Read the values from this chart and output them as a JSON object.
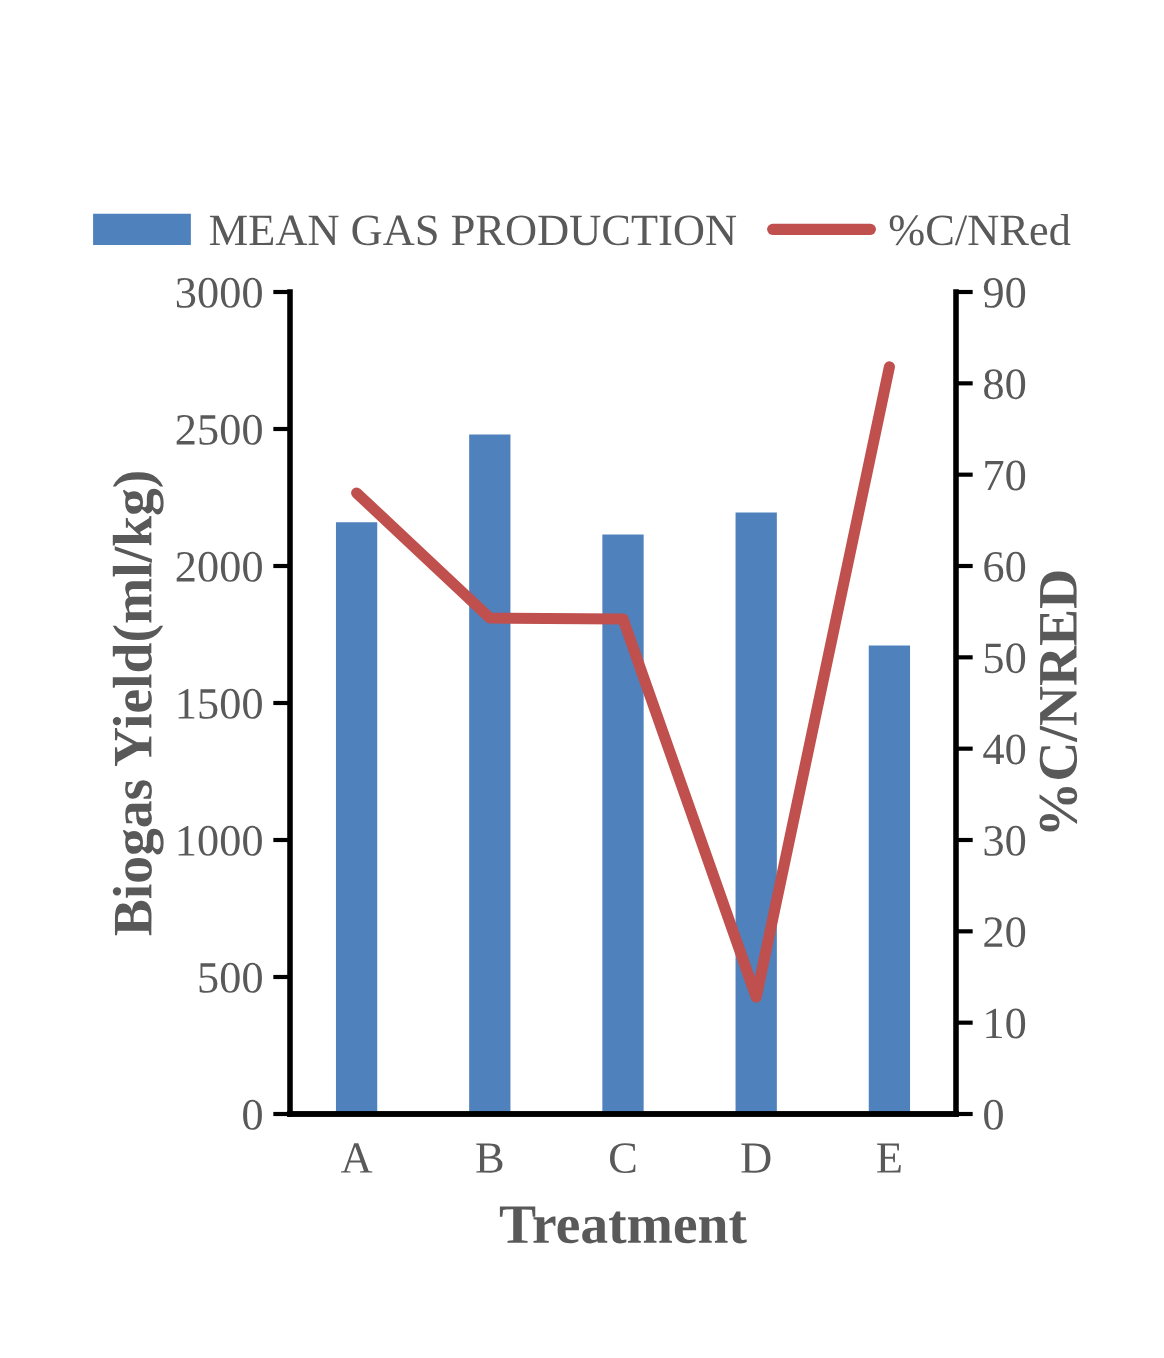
{
  "chart_data": {
    "type": "bar",
    "categories": [
      "A",
      "B",
      "C",
      "D",
      "E"
    ],
    "xlabel": "Treatment",
    "ylabel": "Biogas Yield(ml/kg)",
    "y2label": "%C/NRED",
    "series": [
      {
        "name": "MEAN GAS PRODUCTION",
        "color": "#4f81bd",
        "values": [
          2160,
          2480,
          2115,
          2195,
          1710
        ]
      },
      {
        "name": "%C/NRed",
        "type": "line",
        "axis": "y2",
        "color": "#c0504d",
        "values": [
          68,
          54.3,
          54.2,
          12.8,
          81.8
        ]
      }
    ],
    "ylim": [
      0,
      3000
    ],
    "yticks": [
      0,
      500,
      1000,
      1500,
      2000,
      2500,
      3000
    ],
    "y2lim": [
      0,
      90
    ],
    "y2ticks": [
      0,
      10,
      20,
      30,
      40,
      50,
      60,
      70,
      80,
      90
    ],
    "grid": false,
    "legend": "top",
    "marker": "none",
    "line_style": "solid"
  }
}
